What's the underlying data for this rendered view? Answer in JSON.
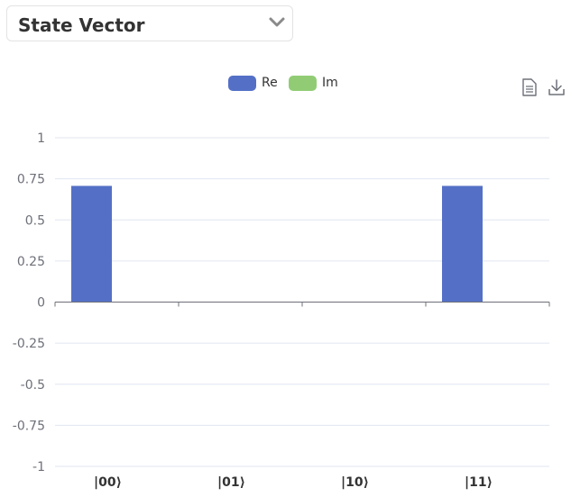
{
  "selector": {
    "value": "State Vector",
    "icon": "chevron-down-icon"
  },
  "toolbox": {
    "data_view_icon": "document-icon",
    "save_icon": "download-icon"
  },
  "colors": {
    "re": "#5470c6",
    "im": "#91cc75",
    "grid": "#e0e6f1",
    "axis": "#6e7079"
  },
  "chart_data": {
    "type": "bar",
    "legend": [
      "Re",
      "Im"
    ],
    "legend_position": "top-center",
    "categories": [
      "|00⟩",
      "|01⟩",
      "|10⟩",
      "|11⟩"
    ],
    "series": [
      {
        "name": "Re",
        "values": [
          0.7071,
          0,
          0,
          0.7071
        ]
      },
      {
        "name": "Im",
        "values": [
          0,
          0,
          0,
          0
        ]
      }
    ],
    "ylim": [
      -1,
      1
    ],
    "yticks": [
      "1",
      "0.75",
      "0.5",
      "0.25",
      "0",
      "-0.25",
      "-0.5",
      "-0.75",
      "-1"
    ],
    "grid": true
  }
}
